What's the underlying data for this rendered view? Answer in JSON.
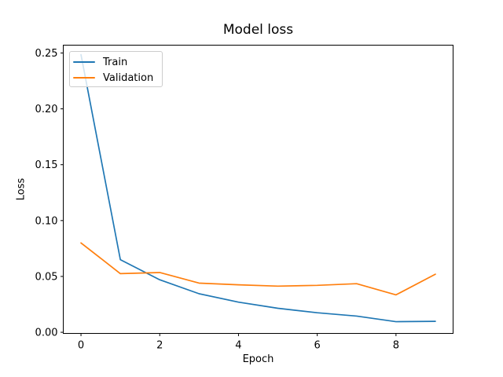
{
  "figure": {
    "background": "#ffffff",
    "frame_color": "#000000"
  },
  "chart_data": {
    "type": "line",
    "title": "Model loss",
    "xlabel": "Epoch",
    "ylabel": "Loss",
    "x": [
      0,
      1,
      2,
      3,
      4,
      5,
      6,
      7,
      8,
      9
    ],
    "series": [
      {
        "name": "Train",
        "color": "#1f77b4",
        "values": [
          0.2485,
          0.065,
          0.047,
          0.0345,
          0.027,
          0.0215,
          0.0175,
          0.0145,
          0.0095,
          0.0098
        ]
      },
      {
        "name": "Validation",
        "color": "#ff7f0e",
        "values": [
          0.08,
          0.0525,
          0.0535,
          0.044,
          0.0425,
          0.0413,
          0.042,
          0.0435,
          0.0335,
          0.052
        ]
      }
    ],
    "xlim": [
      -0.45,
      9.45
    ],
    "ylim": [
      -0.001,
      0.257
    ],
    "xticks": {
      "values": [
        0,
        2,
        4,
        6,
        8
      ],
      "labels": [
        "0",
        "2",
        "4",
        "6",
        "8"
      ]
    },
    "yticks": {
      "values": [
        0.0,
        0.05,
        0.1,
        0.15,
        0.2,
        0.25
      ],
      "labels": [
        "0.00",
        "0.05",
        "0.10",
        "0.15",
        "0.20",
        "0.25"
      ]
    },
    "legend": {
      "position": "upper left",
      "entries": [
        "Train",
        "Validation"
      ],
      "border_color": "#cccccc"
    },
    "grid": false
  }
}
